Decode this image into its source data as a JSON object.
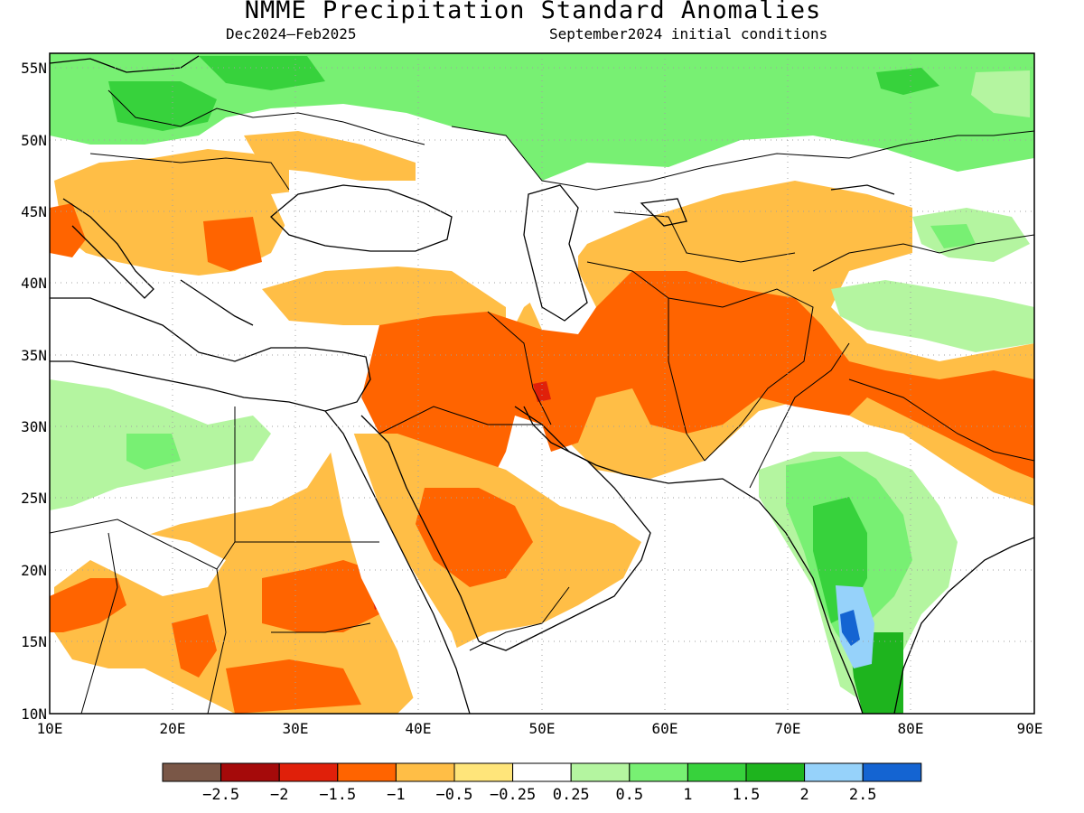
{
  "header": {
    "title": "NMME Precipitation Standard Anomalies",
    "period": "Dec2024–Feb2025",
    "initial_conditions": "September2024 initial conditions"
  },
  "map": {
    "lon_range": [
      10,
      90
    ],
    "lat_range": [
      10,
      56
    ],
    "lon_ticks": [
      "10E",
      "20E",
      "30E",
      "40E",
      "50E",
      "60E",
      "70E",
      "80E",
      "90E"
    ],
    "lat_ticks": [
      "10N",
      "15N",
      "20N",
      "25N",
      "30N",
      "35N",
      "40N",
      "45N",
      "50N",
      "55N"
    ],
    "grid": "dotted"
  },
  "colorbar": {
    "colors": [
      "#7a5747",
      "#a50a0a",
      "#e0200a",
      "#ff6400",
      "#ffbe46",
      "#ffe57a",
      "#ffffff",
      "#b4f5a0",
      "#78f073",
      "#37d23c",
      "#1eb41e",
      "#96d2fa",
      "#1464d2"
    ],
    "labels": [
      "−2.5",
      "−2",
      "−1.5",
      "−1",
      "−0.5",
      "−0.25",
      "0.25",
      "0.5",
      "1",
      "1.5",
      "2",
      "2.5"
    ]
  },
  "palette": {
    "lightgreen": "#b4f5a0",
    "green": "#78f073",
    "midgreen": "#37d23c",
    "darkgreen": "#1eb41e",
    "lightblue": "#96d2fa",
    "blue": "#1464d2",
    "yellow": "#ffe57a",
    "lightorange": "#ffbe46",
    "orange": "#ff6400",
    "red": "#e0200a",
    "darkred": "#a50a0a"
  }
}
